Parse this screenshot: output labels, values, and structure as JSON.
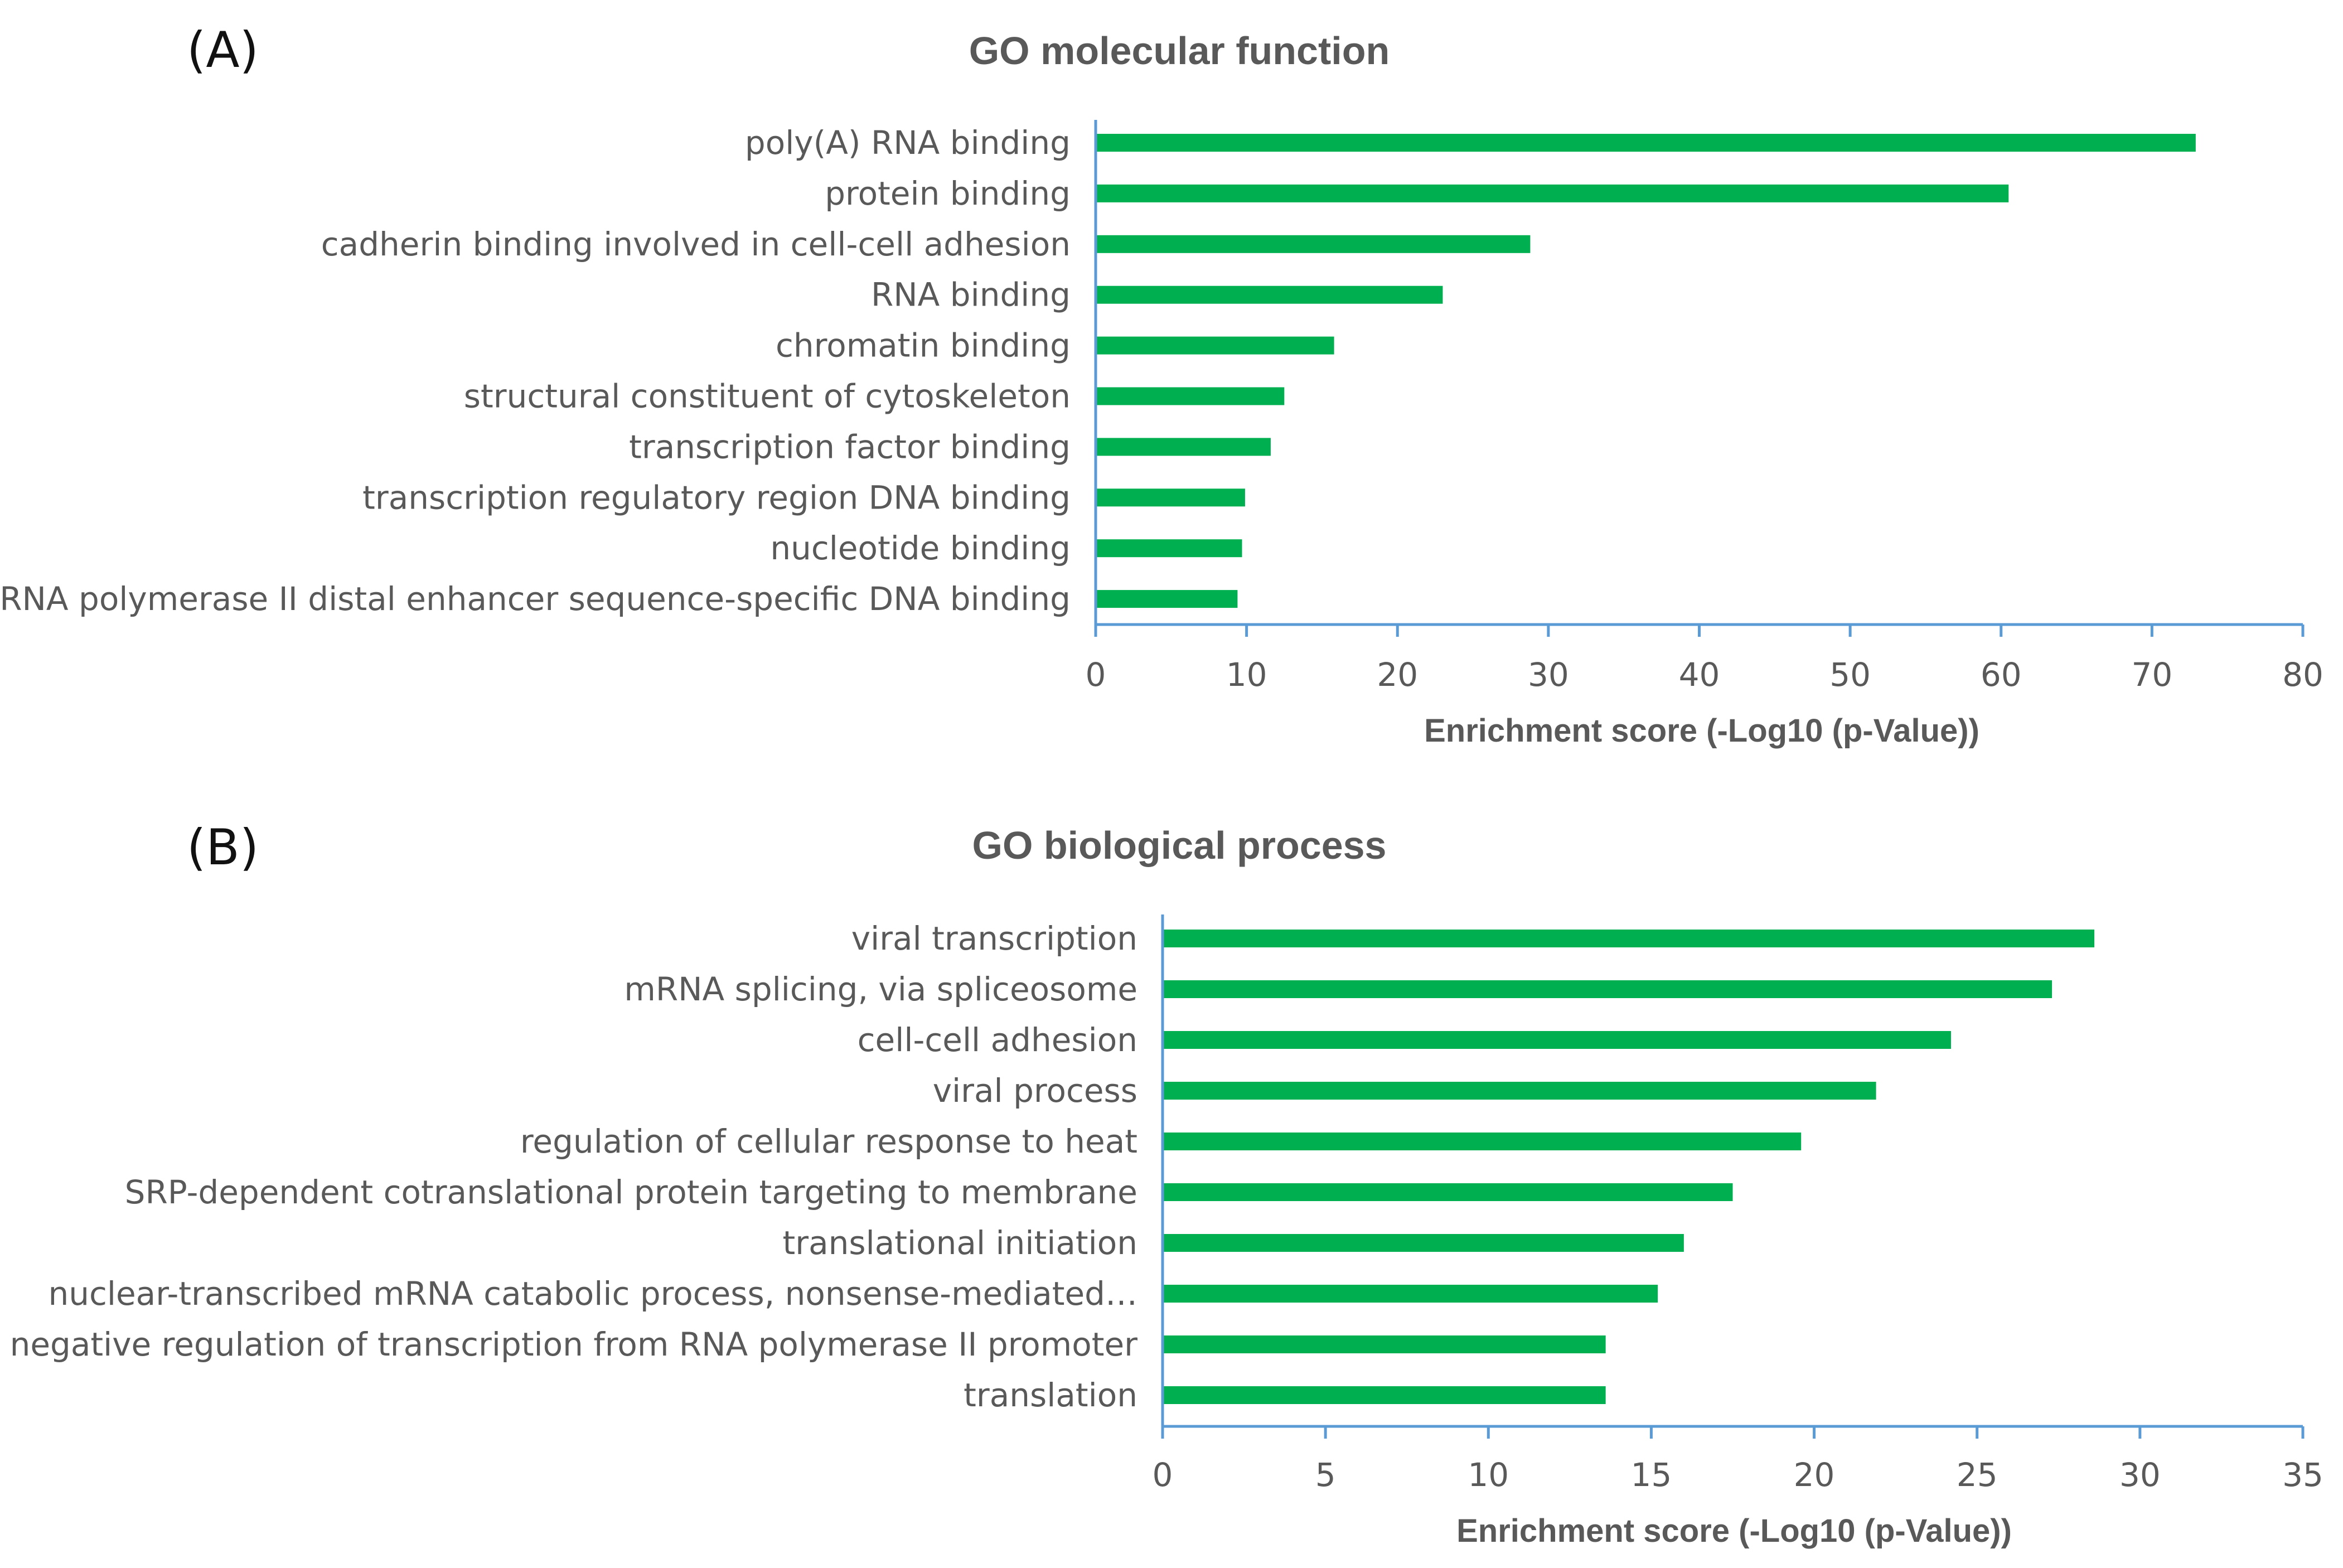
{
  "chart_data": [
    {
      "type": "bar",
      "orientation": "horizontal",
      "panel_label": "(A)",
      "title": "GO molecular function",
      "xlabel": "Enrichment score (-Log10 (p-Value))",
      "ylabel": "",
      "xlim": [
        0,
        80
      ],
      "xticks": [
        0,
        10,
        20,
        30,
        40,
        50,
        60,
        70,
        80
      ],
      "categories": [
        "poly(A) RNA binding",
        "protein binding",
        "cadherin binding involved in cell-cell adhesion",
        "RNA binding",
        "chromatin binding",
        "structural constituent of cytoskeleton",
        "transcription factor binding",
        "transcription regulatory region DNA binding",
        "nucleotide binding",
        "RNA polymerase II distal enhancer sequence-specific DNA binding"
      ],
      "values": [
        72.9,
        60.5,
        28.8,
        23.0,
        15.8,
        12.5,
        11.6,
        9.9,
        9.7,
        9.4
      ],
      "color": "#00b050",
      "axis_color": "#5b9bd5",
      "grid": false,
      "legend": false
    },
    {
      "type": "bar",
      "orientation": "horizontal",
      "panel_label": "(B)",
      "title": "GO biological process",
      "xlabel": "Enrichment score (-Log10 (p-Value))",
      "ylabel": "",
      "xlim": [
        0,
        35
      ],
      "xticks": [
        0,
        5,
        10,
        15,
        20,
        25,
        30,
        35
      ],
      "categories": [
        "viral transcription",
        "mRNA splicing, via spliceosome",
        "cell-cell adhesion",
        "viral process",
        "regulation of cellular response to heat",
        "SRP-dependent cotranslational protein targeting to membrane",
        "translational initiation",
        "nuclear-transcribed mRNA catabolic process, nonsense-mediated…",
        "negative regulation of transcription from RNA polymerase II promoter",
        "translation"
      ],
      "values": [
        28.6,
        27.3,
        24.2,
        21.9,
        19.6,
        17.5,
        16.0,
        15.2,
        13.6,
        13.6
      ],
      "color": "#00b050",
      "axis_color": "#5b9bd5",
      "grid": false,
      "legend": false
    }
  ]
}
